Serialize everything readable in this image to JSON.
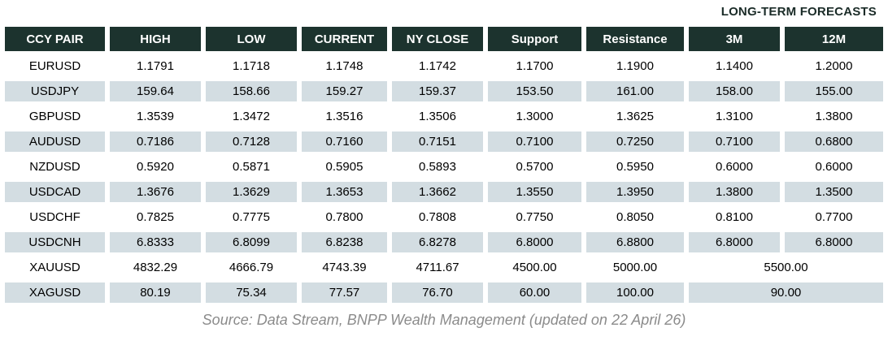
{
  "title": "LONG-TERM FORECASTS",
  "table": {
    "columns": [
      "CCY PAIR",
      "HIGH",
      "LOW",
      "CURRENT",
      "NY CLOSE",
      "Support",
      "Resistance",
      "3M",
      "12M"
    ],
    "rows": [
      {
        "shaded": false,
        "merge_last": false,
        "cells": [
          "EURUSD",
          "1.1791",
          "1.1718",
          "1.1748",
          "1.1742",
          "1.1700",
          "1.1900",
          "1.1400",
          "1.2000"
        ]
      },
      {
        "shaded": true,
        "merge_last": false,
        "cells": [
          "USDJPY",
          "159.64",
          "158.66",
          "159.27",
          "159.37",
          "153.50",
          "161.00",
          "158.00",
          "155.00"
        ]
      },
      {
        "shaded": false,
        "merge_last": false,
        "cells": [
          "GBPUSD",
          "1.3539",
          "1.3472",
          "1.3516",
          "1.3506",
          "1.3000",
          "1.3625",
          "1.3100",
          "1.3800"
        ]
      },
      {
        "shaded": true,
        "merge_last": false,
        "cells": [
          "AUDUSD",
          "0.7186",
          "0.7128",
          "0.7160",
          "0.7151",
          "0.7100",
          "0.7250",
          "0.7100",
          "0.6800"
        ]
      },
      {
        "shaded": false,
        "merge_last": false,
        "cells": [
          "NZDUSD",
          "0.5920",
          "0.5871",
          "0.5905",
          "0.5893",
          "0.5700",
          "0.5950",
          "0.6000",
          "0.6000"
        ]
      },
      {
        "shaded": true,
        "merge_last": false,
        "cells": [
          "USDCAD",
          "1.3676",
          "1.3629",
          "1.3653",
          "1.3662",
          "1.3550",
          "1.3950",
          "1.3800",
          "1.3500"
        ]
      },
      {
        "shaded": false,
        "merge_last": false,
        "cells": [
          "USDCHF",
          "0.7825",
          "0.7775",
          "0.7800",
          "0.7808",
          "0.7750",
          "0.8050",
          "0.8100",
          "0.7700"
        ]
      },
      {
        "shaded": true,
        "merge_last": false,
        "cells": [
          "USDCNH",
          "6.8333",
          "6.8099",
          "6.8238",
          "6.8278",
          "6.8000",
          "6.8800",
          "6.8000",
          "6.8000"
        ]
      },
      {
        "shaded": false,
        "merge_last": true,
        "cells": [
          "XAUUSD",
          "4832.29",
          "4666.79",
          "4743.39",
          "4711.67",
          "4500.00",
          "5000.00",
          "5500.00"
        ]
      },
      {
        "shaded": true,
        "merge_last": true,
        "cells": [
          "XAGUSD",
          "80.19",
          "75.34",
          "77.57",
          "76.70",
          "60.00",
          "100.00",
          "90.00"
        ]
      }
    ]
  },
  "footer": {
    "source": "Source: Data Stream, BNPP Wealth Management (updated on 22 April 26)"
  },
  "colors": {
    "header_bg": "#1c332e",
    "header_text": "#ffffff",
    "row_alt_bg": "#d3dde2",
    "title_text": "#1a2b27",
    "source_text": "#8b8b8b"
  }
}
